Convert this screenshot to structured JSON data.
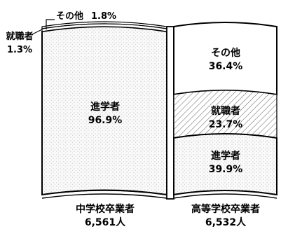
{
  "chart_data": {
    "type": "bar",
    "stacked": true,
    "unit": "%",
    "categories": [
      {
        "name": "中学校卒業者",
        "total_text": "6,561人"
      },
      {
        "name": "高等学校卒業者",
        "total_text": "6,532人"
      }
    ],
    "series": [
      {
        "name": "進学者",
        "values": [
          96.9,
          39.9
        ],
        "value_labels": [
          "96.9%",
          "39.9%"
        ]
      },
      {
        "name": "就職者",
        "values": [
          1.3,
          23.7
        ],
        "value_labels": [
          "1.3%",
          "23.7%"
        ]
      },
      {
        "name": "その他",
        "values": [
          1.8,
          36.4
        ],
        "value_labels": [
          "1.8%",
          "36.4%"
        ]
      }
    ],
    "fills": {
      "進学者": "dots",
      "就職者": "hatch",
      "その他": "white"
    },
    "colors": {
      "ink": "#000000",
      "paper": "#ffffff",
      "dots": "#d9d9d9"
    }
  }
}
